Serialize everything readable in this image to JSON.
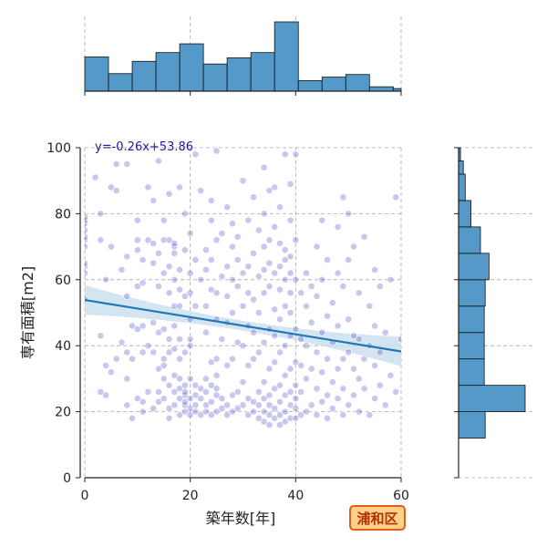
{
  "chart_data": {
    "type": "scatter",
    "title": "",
    "xlabel": "築年数[年]",
    "ylabel": "専有面積[m2]",
    "xlim": [
      0,
      60
    ],
    "ylim": [
      0,
      100
    ],
    "x_ticks": [
      0,
      20,
      40,
      60
    ],
    "y_ticks": [
      0,
      20,
      40,
      60,
      80,
      100
    ],
    "grid": true,
    "regression": {
      "equation_label": "y=-0.26x+53.86",
      "slope": -0.26,
      "intercept": 53.86,
      "ci_halfwidth_ends": 4.5,
      "ci_halfwidth_center": 1.5
    },
    "colors": {
      "points": "#3b3bc4",
      "line": "#1f77b4",
      "band": "#c5dced",
      "hist": "#5499c7",
      "badge_bg": "#ffd08a",
      "badge_border": "#e0601a"
    },
    "badge": "浦和区",
    "histogram_x": {
      "bin_edges": [
        0,
        4.5,
        9,
        13.5,
        18,
        22.5,
        27,
        31.5,
        36,
        40.5,
        45,
        49.5,
        54,
        58.5,
        60
      ],
      "counts": [
        39,
        20,
        34,
        44,
        54,
        31,
        38,
        44,
        79,
        12,
        16,
        19,
        5,
        3
      ]
    },
    "histogram_y": {
      "bin_edges": [
        12,
        20,
        28,
        36,
        44,
        52,
        60,
        68,
        76,
        84,
        92,
        96,
        100
      ],
      "counts": [
        28,
        70,
        27,
        27,
        27,
        28,
        32,
        23,
        13,
        7,
        5,
        2
      ]
    },
    "points": [
      [
        0,
        54
      ],
      [
        0,
        62
      ],
      [
        0,
        64
      ],
      [
        0,
        65
      ],
      [
        0,
        70
      ],
      [
        0,
        72
      ],
      [
        0,
        73
      ],
      [
        0,
        75
      ],
      [
        0,
        77
      ],
      [
        0,
        78
      ],
      [
        0,
        79
      ],
      [
        2,
        91
      ],
      [
        3,
        26
      ],
      [
        3,
        43
      ],
      [
        3,
        72
      ],
      [
        3,
        80
      ],
      [
        4,
        60
      ],
      [
        4,
        25
      ],
      [
        4,
        34
      ],
      [
        5,
        32
      ],
      [
        5,
        70
      ],
      [
        5,
        88
      ],
      [
        6,
        87
      ],
      [
        6,
        95
      ],
      [
        6,
        36
      ],
      [
        7,
        41
      ],
      [
        7,
        63
      ],
      [
        8,
        22
      ],
      [
        8,
        30
      ],
      [
        8,
        38
      ],
      [
        8,
        55
      ],
      [
        8,
        95
      ],
      [
        8,
        67
      ],
      [
        9,
        18
      ],
      [
        9,
        36
      ],
      [
        9,
        46
      ],
      [
        10,
        58
      ],
      [
        10,
        45
      ],
      [
        10,
        24
      ],
      [
        10,
        69
      ],
      [
        10,
        72
      ],
      [
        10,
        78
      ],
      [
        11,
        20
      ],
      [
        11,
        23
      ],
      [
        11,
        38
      ],
      [
        11,
        46
      ],
      [
        11,
        59
      ],
      [
        11,
        66
      ],
      [
        12,
        26
      ],
      [
        12,
        40
      ],
      [
        12,
        72
      ],
      [
        12,
        88
      ],
      [
        13,
        21
      ],
      [
        13,
        38
      ],
      [
        13,
        47
      ],
      [
        13,
        65
      ],
      [
        13,
        71
      ],
      [
        13,
        84
      ],
      [
        14,
        23
      ],
      [
        14,
        26
      ],
      [
        14,
        33
      ],
      [
        14,
        44
      ],
      [
        14,
        58
      ],
      [
        14,
        68
      ],
      [
        14,
        96
      ],
      [
        15,
        24
      ],
      [
        15,
        30
      ],
      [
        15,
        34
      ],
      [
        15,
        36
      ],
      [
        15,
        45
      ],
      [
        15,
        62
      ],
      [
        15,
        72
      ],
      [
        15,
        78
      ],
      [
        16,
        18
      ],
      [
        16,
        21
      ],
      [
        16,
        28
      ],
      [
        16,
        38
      ],
      [
        16,
        42
      ],
      [
        16,
        56
      ],
      [
        16,
        64
      ],
      [
        16,
        72
      ],
      [
        16,
        86
      ],
      [
        17,
        22
      ],
      [
        17,
        26
      ],
      [
        17,
        31
      ],
      [
        17,
        39
      ],
      [
        17,
        46
      ],
      [
        17,
        52
      ],
      [
        17,
        60
      ],
      [
        17,
        68
      ],
      [
        17,
        70
      ],
      [
        17,
        71
      ],
      [
        18,
        19
      ],
      [
        18,
        24
      ],
      [
        18,
        27
      ],
      [
        18,
        30
      ],
      [
        18,
        36
      ],
      [
        18,
        42
      ],
      [
        18,
        52
      ],
      [
        18,
        57
      ],
      [
        18,
        63
      ],
      [
        18,
        88
      ],
      [
        19,
        20
      ],
      [
        19,
        22
      ],
      [
        19,
        23
      ],
      [
        19,
        25
      ],
      [
        19,
        26
      ],
      [
        19,
        28
      ],
      [
        19,
        38
      ],
      [
        19,
        55
      ],
      [
        19,
        69
      ],
      [
        19,
        80
      ],
      [
        20,
        19
      ],
      [
        20,
        21
      ],
      [
        20,
        24
      ],
      [
        20,
        30
      ],
      [
        20,
        40
      ],
      [
        20,
        42
      ],
      [
        20,
        48
      ],
      [
        20,
        56
      ],
      [
        20,
        62
      ],
      [
        20,
        74
      ],
      [
        21,
        20
      ],
      [
        21,
        22
      ],
      [
        21,
        25
      ],
      [
        21,
        28
      ],
      [
        21,
        52
      ],
      [
        21,
        66
      ],
      [
        21,
        98
      ],
      [
        22,
        19
      ],
      [
        22,
        24
      ],
      [
        22,
        27
      ],
      [
        22,
        60
      ],
      [
        22,
        87
      ],
      [
        23,
        20
      ],
      [
        23,
        22
      ],
      [
        23,
        26
      ],
      [
        23,
        30
      ],
      [
        23,
        44
      ],
      [
        23,
        52
      ],
      [
        23,
        63
      ],
      [
        23,
        69
      ],
      [
        24,
        19
      ],
      [
        24,
        23
      ],
      [
        24,
        28
      ],
      [
        24,
        35
      ],
      [
        24,
        57
      ],
      [
        24,
        66
      ],
      [
        24,
        78
      ],
      [
        24,
        84
      ],
      [
        25,
        20
      ],
      [
        25,
        25
      ],
      [
        25,
        27
      ],
      [
        25,
        31
      ],
      [
        25,
        36
      ],
      [
        25,
        48
      ],
      [
        25,
        56
      ],
      [
        25,
        72
      ],
      [
        25,
        99
      ],
      [
        26,
        21
      ],
      [
        26,
        24
      ],
      [
        26,
        42
      ],
      [
        26,
        61
      ],
      [
        26,
        74
      ],
      [
        27,
        19
      ],
      [
        27,
        22
      ],
      [
        27,
        34
      ],
      [
        27,
        47
      ],
      [
        27,
        55
      ],
      [
        27,
        64
      ],
      [
        27,
        82
      ],
      [
        28,
        20
      ],
      [
        28,
        25
      ],
      [
        28,
        36
      ],
      [
        28,
        50
      ],
      [
        28,
        60
      ],
      [
        28,
        70
      ],
      [
        28,
        77
      ],
      [
        29,
        21
      ],
      [
        29,
        26
      ],
      [
        29,
        41
      ],
      [
        29,
        58
      ],
      [
        29,
        66
      ],
      [
        29,
        73
      ],
      [
        30,
        22
      ],
      [
        30,
        29
      ],
      [
        30,
        40
      ],
      [
        30,
        52
      ],
      [
        30,
        62
      ],
      [
        30,
        90
      ],
      [
        31,
        19
      ],
      [
        31,
        24
      ],
      [
        31,
        34
      ],
      [
        31,
        46
      ],
      [
        31,
        56
      ],
      [
        31,
        64
      ],
      [
        31,
        78
      ],
      [
        32,
        20
      ],
      [
        32,
        23
      ],
      [
        32,
        36
      ],
      [
        32,
        44
      ],
      [
        32,
        54
      ],
      [
        32,
        68
      ],
      [
        32,
        85
      ],
      [
        33,
        18
      ],
      [
        33,
        22
      ],
      [
        33,
        26
      ],
      [
        33,
        38
      ],
      [
        33,
        50
      ],
      [
        33,
        61
      ],
      [
        33,
        75
      ],
      [
        34,
        17
      ],
      [
        34,
        20
      ],
      [
        34,
        24
      ],
      [
        34,
        29
      ],
      [
        34,
        41
      ],
      [
        34,
        56
      ],
      [
        34,
        63
      ],
      [
        34,
        70
      ],
      [
        34,
        80
      ],
      [
        34,
        94
      ],
      [
        35,
        16
      ],
      [
        35,
        19
      ],
      [
        35,
        22
      ],
      [
        35,
        25
      ],
      [
        35,
        33
      ],
      [
        35,
        45
      ],
      [
        35,
        58
      ],
      [
        35,
        65
      ],
      [
        35,
        72
      ],
      [
        35,
        87
      ],
      [
        36,
        18
      ],
      [
        36,
        21
      ],
      [
        36,
        27
      ],
      [
        36,
        35
      ],
      [
        36,
        43
      ],
      [
        36,
        51
      ],
      [
        36,
        62
      ],
      [
        36,
        76
      ],
      [
        36,
        88
      ],
      [
        37,
        16
      ],
      [
        37,
        19
      ],
      [
        37,
        23
      ],
      [
        37,
        28
      ],
      [
        37,
        38
      ],
      [
        37,
        48
      ],
      [
        37,
        57
      ],
      [
        37,
        64
      ],
      [
        37,
        71
      ],
      [
        37,
        82
      ],
      [
        38,
        17
      ],
      [
        38,
        20
      ],
      [
        38,
        25
      ],
      [
        38,
        31
      ],
      [
        38,
        40
      ],
      [
        38,
        52
      ],
      [
        38,
        60
      ],
      [
        38,
        66
      ],
      [
        38,
        69
      ],
      [
        38,
        98
      ],
      [
        39,
        18
      ],
      [
        39,
        22
      ],
      [
        39,
        26
      ],
      [
        39,
        33
      ],
      [
        39,
        43
      ],
      [
        39,
        50
      ],
      [
        39,
        56
      ],
      [
        39,
        62
      ],
      [
        39,
        67
      ],
      [
        39,
        78
      ],
      [
        39,
        89
      ],
      [
        40,
        18
      ],
      [
        40,
        21
      ],
      [
        40,
        24
      ],
      [
        40,
        28
      ],
      [
        40,
        35
      ],
      [
        40,
        45
      ],
      [
        40,
        60
      ],
      [
        40,
        72
      ],
      [
        40,
        98
      ],
      [
        41,
        19
      ],
      [
        41,
        26
      ],
      [
        41,
        34
      ],
      [
        41,
        42
      ],
      [
        41,
        56
      ],
      [
        42,
        20
      ],
      [
        42,
        30
      ],
      [
        42,
        40
      ],
      [
        42,
        52
      ],
      [
        42,
        62
      ],
      [
        43,
        22
      ],
      [
        43,
        33
      ],
      [
        43,
        47
      ],
      [
        43,
        58
      ],
      [
        44,
        19
      ],
      [
        44,
        27
      ],
      [
        44,
        38
      ],
      [
        44,
        55
      ],
      [
        44,
        70
      ],
      [
        45,
        23
      ],
      [
        45,
        32
      ],
      [
        45,
        44
      ],
      [
        45,
        60
      ],
      [
        45,
        78
      ],
      [
        46,
        18
      ],
      [
        46,
        25
      ],
      [
        46,
        36
      ],
      [
        46,
        49
      ],
      [
        46,
        66
      ],
      [
        47,
        21
      ],
      [
        47,
        29
      ],
      [
        47,
        41
      ],
      [
        47,
        53
      ],
      [
        48,
        24
      ],
      [
        48,
        33
      ],
      [
        48,
        46
      ],
      [
        48,
        62
      ],
      [
        48,
        76
      ],
      [
        49,
        19
      ],
      [
        49,
        27
      ],
      [
        49,
        36
      ],
      [
        49,
        58
      ],
      [
        49,
        85
      ],
      [
        50,
        22
      ],
      [
        50,
        38
      ],
      [
        50,
        48
      ],
      [
        50,
        66
      ],
      [
        50,
        80
      ],
      [
        51,
        25
      ],
      [
        51,
        33
      ],
      [
        51,
        43
      ],
      [
        51,
        70
      ],
      [
        52,
        20
      ],
      [
        52,
        30
      ],
      [
        52,
        42
      ],
      [
        52,
        56
      ],
      [
        53,
        27
      ],
      [
        53,
        36
      ],
      [
        53,
        73
      ],
      [
        54,
        19
      ],
      [
        54,
        40
      ],
      [
        54,
        52
      ],
      [
        55,
        24
      ],
      [
        55,
        34
      ],
      [
        55,
        46
      ],
      [
        55,
        63
      ],
      [
        56,
        28
      ],
      [
        56,
        38
      ],
      [
        56,
        58
      ],
      [
        57,
        22
      ],
      [
        57,
        44
      ],
      [
        58,
        31
      ],
      [
        58,
        60
      ],
      [
        59,
        26
      ],
      [
        59,
        85
      ],
      [
        60,
        42
      ]
    ]
  }
}
